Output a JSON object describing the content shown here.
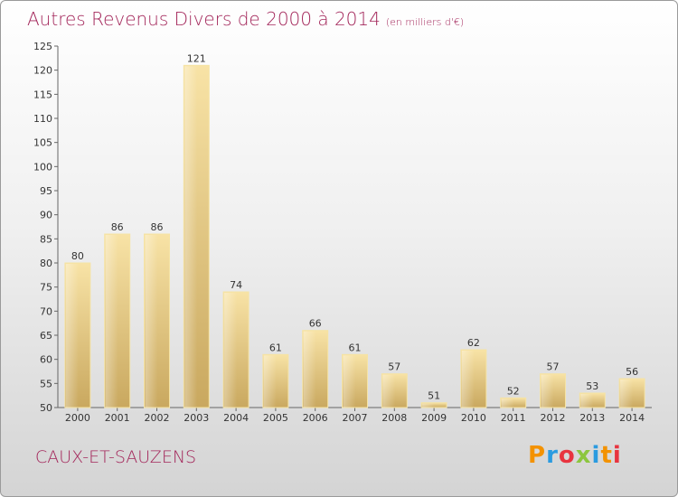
{
  "title": "Autres Revenus Divers de 2000 à 2014",
  "title_unit": "(en milliers d'€)",
  "commune": "CAUX-ET-SAUZENS",
  "logo": {
    "letters": [
      "P",
      "r",
      "o",
      "x",
      "i",
      "t",
      "i"
    ],
    "colors": [
      "#f39200",
      "#2b9be0",
      "#e8343f",
      "#8cc63e",
      "#2b9be0",
      "#f39200",
      "#e8343f"
    ]
  },
  "chart_data": {
    "type": "bar",
    "categories": [
      "2000",
      "2001",
      "2002",
      "2003",
      "2004",
      "2005",
      "2006",
      "2007",
      "2008",
      "2009",
      "2010",
      "2011",
      "2012",
      "2013",
      "2014"
    ],
    "values": [
      80,
      86,
      86,
      121,
      74,
      61,
      66,
      61,
      57,
      51,
      62,
      52,
      57,
      53,
      56
    ],
    "ylim": [
      50,
      125
    ],
    "yticks": [
      50,
      55,
      60,
      65,
      70,
      75,
      80,
      85,
      90,
      95,
      100,
      105,
      110,
      115,
      120,
      125
    ],
    "bar_color": "#e3c67a",
    "grid": false
  }
}
